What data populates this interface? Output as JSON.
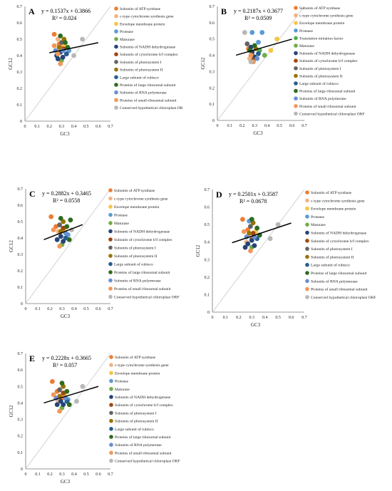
{
  "colors": {
    "Subunits of ATP synthase": "#ED7D31",
    "c-type cytochrome synthesis gene": "#F4B183",
    "Envelope membrane protein": "#F6C542",
    "Protease": "#5B9BD5",
    "Maturase": "#70AD47",
    "Subunits of NADH dehydrogenase": "#264478",
    "Subunits of cytochrome b/f complex": "#9E480E",
    "Subunits of photosystem I": "#636363",
    "Subunits of photosystem II": "#997300",
    "Large subunit of rubisco": "#255E91",
    "Proteins of large ribosomal subunit": "#2E6B1F",
    "Subunits of RNA polymerase": "#698ED0",
    "Proteins of small ribosomal subunit": "#F1975A",
    "Conserved hypothetical chloroplast ORF": "#B7B7B7",
    "Translation initiation factor": "#4CAF50",
    "Conserved hypothetical chloroplast OR": "#B7B7B7"
  },
  "chart_data": [
    {
      "panel": "A",
      "type": "scatter",
      "equation": "y = 0.1537x + 0.3866",
      "r2": "R² = 0.024",
      "slope": 0.1537,
      "intercept": 0.3866,
      "fit_x": [
        0.2,
        0.6
      ],
      "xlabel": "GC3",
      "ylabel": "GC12",
      "xlim": [
        0,
        0.7
      ],
      "ylim": [
        0,
        0.7
      ],
      "ticks": [
        "0",
        "0.1",
        "0.2",
        "0.3",
        "0.4",
        "0.5",
        "0.6",
        "0.7"
      ],
      "legend": [
        "Subunits of ATP synthase",
        "c-type cytochrome synthesis gene",
        "Envelope membrane protein",
        "Protease",
        "Maturase",
        "Subunits of NADH dehydrogenase",
        "Subunits of cytochrome b/f complex",
        "Subunits of photosystem I",
        "Subunits of photosystem II",
        "Large subunit of rubisco",
        "Proteins of large ribosomal subunit",
        "Subunits of RNA polymerase",
        "Proteins of small ribosomal subunit",
        "Conserved hypothetical chloroplast OR"
      ],
      "points": [
        {
          "x": 0.24,
          "y": 0.53,
          "s": "Subunits of ATP synthase"
        },
        {
          "x": 0.28,
          "y": 0.47,
          "s": "Subunits of ATP synthase"
        },
        {
          "x": 0.31,
          "y": 0.45,
          "s": "Subunits of ATP synthase"
        },
        {
          "x": 0.27,
          "y": 0.5,
          "s": "c-type cytochrome synthesis gene"
        },
        {
          "x": 0.33,
          "y": 0.46,
          "s": "Envelope membrane protein"
        },
        {
          "x": 0.36,
          "y": 0.43,
          "s": "Protease"
        },
        {
          "x": 0.3,
          "y": 0.37,
          "s": "Maturase"
        },
        {
          "x": 0.26,
          "y": 0.4,
          "s": "Subunits of NADH dehydrogenase"
        },
        {
          "x": 0.29,
          "y": 0.42,
          "s": "Subunits of NADH dehydrogenase"
        },
        {
          "x": 0.31,
          "y": 0.39,
          "s": "Subunits of NADH dehydrogenase"
        },
        {
          "x": 0.27,
          "y": 0.38,
          "s": "Subunits of NADH dehydrogenase"
        },
        {
          "x": 0.32,
          "y": 0.44,
          "s": "Subunits of cytochrome b/f complex"
        },
        {
          "x": 0.3,
          "y": 0.48,
          "s": "Subunits of photosystem I"
        },
        {
          "x": 0.32,
          "y": 0.5,
          "s": "Subunits of photosystem II"
        },
        {
          "x": 0.28,
          "y": 0.45,
          "s": "Subunits of photosystem II"
        },
        {
          "x": 0.34,
          "y": 0.41,
          "s": "Large subunit of rubisco"
        },
        {
          "x": 0.29,
          "y": 0.52,
          "s": "Proteins of large ribosomal subunit"
        },
        {
          "x": 0.33,
          "y": 0.48,
          "s": "Proteins of large ribosomal subunit"
        },
        {
          "x": 0.35,
          "y": 0.45,
          "s": "Proteins of large ribosomal subunit"
        },
        {
          "x": 0.31,
          "y": 0.43,
          "s": "Subunits of RNA polymerase"
        },
        {
          "x": 0.25,
          "y": 0.43,
          "s": "Subunits of RNA polymerase"
        },
        {
          "x": 0.29,
          "y": 0.35,
          "s": "Proteins of small ribosomal subunit"
        },
        {
          "x": 0.24,
          "y": 0.46,
          "s": "Proteins of small ribosomal subunit"
        },
        {
          "x": 0.27,
          "y": 0.41,
          "s": "Proteins of small ribosomal subunit"
        },
        {
          "x": 0.47,
          "y": 0.5,
          "s": "Conserved hypothetical chloroplast OR"
        },
        {
          "x": 0.4,
          "y": 0.4,
          "s": "Conserved hypothetical chloroplast OR"
        }
      ]
    },
    {
      "panel": "B",
      "type": "scatter",
      "equation": "y = 0.2187x + 0.3677",
      "r2": "R² = 0.0509",
      "slope": 0.2187,
      "intercept": 0.3677,
      "fit_x": [
        0.15,
        0.6
      ],
      "xlabel": "GC3",
      "ylabel": "GC12",
      "xlim": [
        0,
        0.7
      ],
      "ylim": [
        0,
        0.7
      ],
      "ticks": [
        "0",
        "0.1",
        "0.2",
        "0.3",
        "0.4",
        "0.5",
        "0.6",
        "0.7"
      ],
      "legend": [
        "Subunits of ATP synthase",
        "c-type cytochrome synthesis gene",
        "Envelope membrane protein",
        "Protease",
        "Translation initiation factor",
        "Maturase",
        "Subunits of NADH dehydrogenase",
        "Subunits of cytochrome b/f complex",
        "Subunits of photosystem I",
        "Subunits of photosystem II",
        "Large subunit of rubisco",
        "Proteins of large ribosomal subunit",
        "Subunits of RNA polymerase",
        "Proteins of small ribosomal subunit",
        "Conserved hypothetical chloroplast ORF"
      ],
      "points": [
        {
          "x": 0.25,
          "y": 0.44,
          "s": "Subunits of ATP synthase"
        },
        {
          "x": 0.28,
          "y": 0.4,
          "s": "Subunits of ATP synthase"
        },
        {
          "x": 0.26,
          "y": 0.38,
          "s": "c-type cytochrome synthesis gene"
        },
        {
          "x": 0.43,
          "y": 0.43,
          "s": "Envelope membrane protein"
        },
        {
          "x": 0.48,
          "y": 0.5,
          "s": "Envelope membrane protein"
        },
        {
          "x": 0.28,
          "y": 0.54,
          "s": "Protease"
        },
        {
          "x": 0.33,
          "y": 0.48,
          "s": "Protease"
        },
        {
          "x": 0.36,
          "y": 0.54,
          "s": "Protease"
        },
        {
          "x": 0.34,
          "y": 0.43,
          "s": "Translation initiation factor"
        },
        {
          "x": 0.38,
          "y": 0.4,
          "s": "Maturase"
        },
        {
          "x": 0.28,
          "y": 0.42,
          "s": "Subunits of NADH dehydrogenase"
        },
        {
          "x": 0.3,
          "y": 0.39,
          "s": "Subunits of NADH dehydrogenase"
        },
        {
          "x": 0.27,
          "y": 0.45,
          "s": "Subunits of NADH dehydrogenase"
        },
        {
          "x": 0.29,
          "y": 0.37,
          "s": "Subunits of cytochrome b/f complex"
        },
        {
          "x": 0.24,
          "y": 0.47,
          "s": "Subunits of photosystem I"
        },
        {
          "x": 0.31,
          "y": 0.44,
          "s": "Subunits of photosystem II"
        },
        {
          "x": 0.33,
          "y": 0.41,
          "s": "Large subunit of rubisco"
        },
        {
          "x": 0.3,
          "y": 0.46,
          "s": "Proteins of large ribosomal subunit"
        },
        {
          "x": 0.26,
          "y": 0.43,
          "s": "Proteins of large ribosomal subunit"
        },
        {
          "x": 0.32,
          "y": 0.38,
          "s": "Subunits of RNA polymerase"
        },
        {
          "x": 0.29,
          "y": 0.36,
          "s": "Proteins of small ribosomal subunit"
        },
        {
          "x": 0.27,
          "y": 0.4,
          "s": "Proteins of small ribosomal subunit"
        },
        {
          "x": 0.22,
          "y": 0.54,
          "s": "Conserved hypothetical chloroplast ORF"
        },
        {
          "x": 0.27,
          "y": 0.36,
          "s": "Conserved hypothetical chloroplast ORF"
        }
      ]
    },
    {
      "panel": "C",
      "type": "scatter",
      "equation": "y = 0.2882x + 0.3465",
      "r2": "R² = 0.0558",
      "slope": 0.2882,
      "intercept": 0.3465,
      "fit_x": [
        0.15,
        0.47
      ],
      "xlabel": "GC3",
      "ylabel": "GC12",
      "xlim": [
        0,
        0.7
      ],
      "ylim": [
        0,
        0.7
      ],
      "ticks": [
        "0",
        "0.1",
        "0.2",
        "0.3",
        "0.4",
        "0.5",
        "0.6",
        "0.7"
      ],
      "legend": [
        "Subunits of ATP synthase",
        "c-type cytochrome synthesis gene",
        "Envelope membrane protein",
        "Protease",
        "Maturase",
        "Subunits of NADH dehydrogenase",
        "Subunits of cytochrome b/f complex",
        "Subunits of photosystem I",
        "Subunits of photosystem II",
        "Large subunit of rubisco",
        "Proteins of large ribosomal subunit",
        "Subunits of RNA polymerase",
        "Proteins of small ribosomal subunit",
        "Conserved hypothetical chloroplast ORF"
      ],
      "points": [
        {
          "x": 0.21,
          "y": 0.53,
          "s": "Subunits of ATP synthase"
        },
        {
          "x": 0.25,
          "y": 0.47,
          "s": "Subunits of ATP synthase"
        },
        {
          "x": 0.27,
          "y": 0.44,
          "s": "c-type cytochrome synthesis gene"
        },
        {
          "x": 0.32,
          "y": 0.45,
          "s": "Envelope membrane protein"
        },
        {
          "x": 0.35,
          "y": 0.42,
          "s": "Protease"
        },
        {
          "x": 0.3,
          "y": 0.36,
          "s": "Maturase"
        },
        {
          "x": 0.26,
          "y": 0.39,
          "s": "Subunits of NADH dehydrogenase"
        },
        {
          "x": 0.29,
          "y": 0.41,
          "s": "Subunits of NADH dehydrogenase"
        },
        {
          "x": 0.31,
          "y": 0.38,
          "s": "Subunits of NADH dehydrogenase"
        },
        {
          "x": 0.31,
          "y": 0.46,
          "s": "Subunits of cytochrome b/f complex"
        },
        {
          "x": 0.28,
          "y": 0.48,
          "s": "Subunits of photosystem I"
        },
        {
          "x": 0.31,
          "y": 0.5,
          "s": "Subunits of photosystem II"
        },
        {
          "x": 0.29,
          "y": 0.44,
          "s": "Subunits of photosystem II"
        },
        {
          "x": 0.33,
          "y": 0.4,
          "s": "Large subunit of rubisco"
        },
        {
          "x": 0.29,
          "y": 0.52,
          "s": "Proteins of large ribosomal subunit"
        },
        {
          "x": 0.34,
          "y": 0.47,
          "s": "Proteins of large ribosomal subunit"
        },
        {
          "x": 0.37,
          "y": 0.51,
          "s": "Proteins of large ribosomal subunit"
        },
        {
          "x": 0.36,
          "y": 0.39,
          "s": "Proteins of large ribosomal subunit"
        },
        {
          "x": 0.33,
          "y": 0.43,
          "s": "Subunits of RNA polymerase"
        },
        {
          "x": 0.28,
          "y": 0.35,
          "s": "Proteins of small ribosomal subunit"
        },
        {
          "x": 0.23,
          "y": 0.45,
          "s": "Proteins of small ribosomal subunit"
        },
        {
          "x": 0.38,
          "y": 0.45,
          "s": "Conserved hypothetical chloroplast ORF"
        }
      ]
    },
    {
      "panel": "D",
      "type": "scatter",
      "equation": "y = 0.2501x + 0.3587",
      "r2": "R² = 0.0678",
      "slope": 0.2501,
      "intercept": 0.3587,
      "fit_x": [
        0.15,
        0.6
      ],
      "xlabel": "GC3",
      "ylabel": "GC12",
      "xlim": [
        0,
        0.7
      ],
      "ylim": [
        0,
        0.7
      ],
      "ticks": [
        "0",
        "0.1",
        "0.2",
        "0.3",
        "0.4",
        "0.5",
        "0.6",
        "0.7"
      ],
      "legend": [
        "Subunits of ATP synthase",
        "c-type cytochrome synthesis gene",
        "Envelope membrane protein",
        "Protease",
        "Maturase",
        "Subunits of NADH dehydrogenase",
        "Subunits of cytochrome b/f complex",
        "Subunits of photosystem I",
        "Subunits of photosystem II",
        "Large subunit of rubisco",
        "Proteins of large ribosomal subunit",
        "Subunits of RNA polymerase",
        "Proteins of small ribosomal subunit",
        "Conserved hypothetical chloroplast ORF"
      ],
      "points": [
        {
          "x": 0.23,
          "y": 0.53,
          "s": "Subunits of ATP synthase"
        },
        {
          "x": 0.27,
          "y": 0.47,
          "s": "Subunits of ATP synthase"
        },
        {
          "x": 0.3,
          "y": 0.42,
          "s": "Subunits of ATP synthase"
        },
        {
          "x": 0.26,
          "y": 0.4,
          "s": "c-type cytochrome synthesis gene"
        },
        {
          "x": 0.33,
          "y": 0.46,
          "s": "Envelope membrane protein"
        },
        {
          "x": 0.28,
          "y": 0.52,
          "s": "Protease"
        },
        {
          "x": 0.3,
          "y": 0.37,
          "s": "Maturase"
        },
        {
          "x": 0.27,
          "y": 0.39,
          "s": "Subunits of NADH dehydrogenase"
        },
        {
          "x": 0.3,
          "y": 0.41,
          "s": "Subunits of NADH dehydrogenase"
        },
        {
          "x": 0.32,
          "y": 0.38,
          "s": "Subunits of NADH dehydrogenase"
        },
        {
          "x": 0.25,
          "y": 0.37,
          "s": "Subunits of NADH dehydrogenase"
        },
        {
          "x": 0.31,
          "y": 0.45,
          "s": "Subunits of cytochrome b/f complex"
        },
        {
          "x": 0.29,
          "y": 0.49,
          "s": "Subunits of photosystem I"
        },
        {
          "x": 0.31,
          "y": 0.51,
          "s": "Subunits of photosystem II"
        },
        {
          "x": 0.28,
          "y": 0.45,
          "s": "Subunits of photosystem II"
        },
        {
          "x": 0.34,
          "y": 0.42,
          "s": "Large subunit of rubisco"
        },
        {
          "x": 0.3,
          "y": 0.53,
          "s": "Proteins of large ribosomal subunit"
        },
        {
          "x": 0.34,
          "y": 0.48,
          "s": "Proteins of large ribosomal subunit"
        },
        {
          "x": 0.36,
          "y": 0.44,
          "s": "Proteins of large ribosomal subunit"
        },
        {
          "x": 0.32,
          "y": 0.43,
          "s": "Subunits of RNA polymerase"
        },
        {
          "x": 0.26,
          "y": 0.43,
          "s": "Subunits of RNA polymerase"
        },
        {
          "x": 0.29,
          "y": 0.35,
          "s": "Proteins of small ribosomal subunit"
        },
        {
          "x": 0.24,
          "y": 0.46,
          "s": "Proteins of small ribosomal subunit"
        },
        {
          "x": 0.5,
          "y": 0.5,
          "s": "Conserved hypothetical chloroplast ORF"
        },
        {
          "x": 0.44,
          "y": 0.42,
          "s": "Conserved hypothetical chloroplast ORF"
        }
      ]
    },
    {
      "panel": "E",
      "type": "scatter",
      "equation": "y = 0.2228x + 0.3665",
      "r2": "R² = 0.057",
      "slope": 0.2228,
      "intercept": 0.3665,
      "fit_x": [
        0.15,
        0.6
      ],
      "xlabel": "GC3",
      "ylabel": "GC12",
      "xlim": [
        0,
        0.7
      ],
      "ylim": [
        0,
        0.7
      ],
      "ticks": [
        "0",
        "0.1",
        "0.2",
        "0.3",
        "0.4",
        "0.5",
        "0.6",
        "0.7"
      ],
      "legend": [
        "Subunits of ATP synthase",
        "c-type cytochrome synthesis gene",
        "Envelope membrane protein",
        "Protease",
        "Maturase",
        "Subunits of NADH dehydrogenase",
        "Subunits of cytochrome b/f complex",
        "Subunits of photosystem I",
        "Subunits of photosystem II",
        "Large subunit of rubisco",
        "Proteins of large ribosomal subunit",
        "Subunits of RNA polymerase",
        "Proteins of small ribosomal subunit",
        "Conserved hypothetical chloroplast ORF"
      ],
      "points": [
        {
          "x": 0.22,
          "y": 0.53,
          "s": "Subunits of ATP synthase"
        },
        {
          "x": 0.26,
          "y": 0.47,
          "s": "Subunits of ATP synthase"
        },
        {
          "x": 0.3,
          "y": 0.43,
          "s": "Subunits of ATP synthase"
        },
        {
          "x": 0.27,
          "y": 0.41,
          "s": "c-type cytochrome synthesis gene"
        },
        {
          "x": 0.32,
          "y": 0.45,
          "s": "Envelope membrane protein"
        },
        {
          "x": 0.35,
          "y": 0.42,
          "s": "Protease"
        },
        {
          "x": 0.3,
          "y": 0.37,
          "s": "Maturase"
        },
        {
          "x": 0.26,
          "y": 0.39,
          "s": "Subunits of NADH dehydrogenase"
        },
        {
          "x": 0.29,
          "y": 0.41,
          "s": "Subunits of NADH dehydrogenase"
        },
        {
          "x": 0.31,
          "y": 0.39,
          "s": "Subunits of NADH dehydrogenase"
        },
        {
          "x": 0.31,
          "y": 0.46,
          "s": "Subunits of cytochrome b/f complex"
        },
        {
          "x": 0.28,
          "y": 0.48,
          "s": "Subunits of photosystem I"
        },
        {
          "x": 0.31,
          "y": 0.5,
          "s": "Subunits of photosystem II"
        },
        {
          "x": 0.28,
          "y": 0.44,
          "s": "Subunits of photosystem II"
        },
        {
          "x": 0.34,
          "y": 0.41,
          "s": "Large subunit of rubisco"
        },
        {
          "x": 0.3,
          "y": 0.52,
          "s": "Proteins of large ribosomal subunit"
        },
        {
          "x": 0.34,
          "y": 0.47,
          "s": "Proteins of large ribosomal subunit"
        },
        {
          "x": 0.36,
          "y": 0.39,
          "s": "Proteins of large ribosomal subunit"
        },
        {
          "x": 0.33,
          "y": 0.43,
          "s": "Subunits of RNA polymerase"
        },
        {
          "x": 0.25,
          "y": 0.43,
          "s": "Subunits of RNA polymerase"
        },
        {
          "x": 0.28,
          "y": 0.35,
          "s": "Proteins of small ribosomal subunit"
        },
        {
          "x": 0.23,
          "y": 0.45,
          "s": "Proteins of small ribosomal subunit"
        },
        {
          "x": 0.47,
          "y": 0.5,
          "s": "Conserved hypothetical chloroplast ORF"
        },
        {
          "x": 0.42,
          "y": 0.41,
          "s": "Conserved hypothetical chloroplast ORF"
        }
      ]
    }
  ]
}
